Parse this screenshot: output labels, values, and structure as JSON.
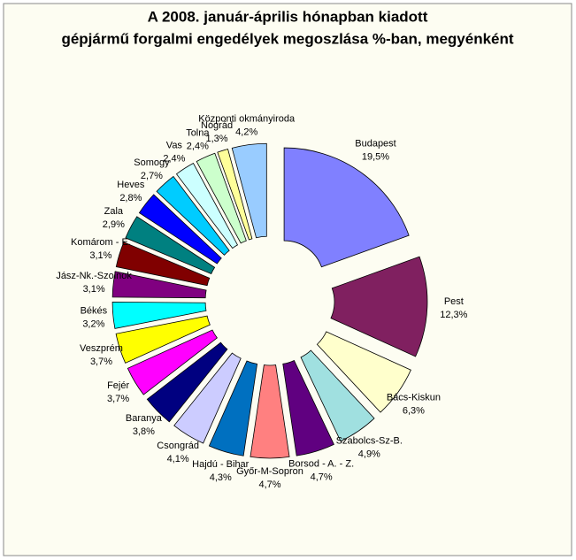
{
  "chart_data": {
    "type": "pie",
    "title": [
      "A  2008. január-április hónapban kiadott",
      "gépjármű forgalmi engedélyek megoszlása %-ban, megyénként"
    ],
    "categories": [
      "Budapest",
      "Pest",
      "Bács-Kiskun",
      "Szabolcs-Sz-B.",
      "Borsod - A. - Z.",
      "Győr-M-Sopron",
      "Hajdú - Bihar",
      "Csongrád",
      "Baranya",
      "Fejér",
      "Veszprém",
      "Békés",
      "Jász-Nk.-Szolnok",
      "Komárom - E.",
      "Zala",
      "Heves",
      "Somogy",
      "Vas",
      "Tolna",
      "Nógrád",
      "Központi okmányiroda"
    ],
    "values": [
      19.5,
      12.3,
      6.3,
      4.9,
      4.7,
      4.7,
      4.3,
      4.1,
      3.8,
      3.7,
      3.7,
      3.2,
      3.1,
      3.1,
      2.9,
      2.8,
      2.7,
      2.4,
      2.4,
      1.3,
      4.2
    ],
    "value_labels": [
      "19,5%",
      "12,3%",
      "6,3%",
      "4,9%",
      "4,7%",
      "4,7%",
      "4,3%",
      "4,1%",
      "3,8%",
      "3,7%",
      "3,7%",
      "3,2%",
      "3,1%",
      "3,1%",
      "2,9%",
      "2,8%",
      "2,7%",
      "2,4%",
      "2,4%",
      "1,3%",
      "4,2%"
    ],
    "colors": [
      "#8080ff",
      "#802060",
      "#ffffcc",
      "#a0e0e0",
      "#600080",
      "#ff8080",
      "#0070c0",
      "#ccccff",
      "#000080",
      "#ff00ff",
      "#ffff00",
      "#00ffff",
      "#800080",
      "#800000",
      "#008080",
      "#0000ff",
      "#00ccff",
      "#ccffff",
      "#ccffcc",
      "#ffff99",
      "#99ccff"
    ]
  }
}
